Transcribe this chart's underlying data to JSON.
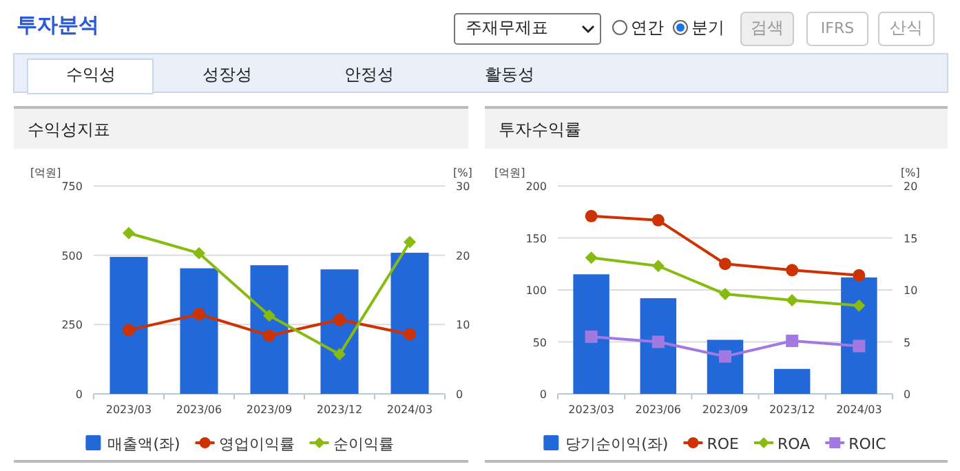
{
  "chart_data": [
    {
      "type": "bar",
      "title": "수익성지표",
      "ylabel": "[억원]",
      "y2label": "[%]",
      "categories": [
        "2023/03",
        "2023/06",
        "2023/09",
        "2023/12",
        "2024/03"
      ],
      "annotations": [
        "투자분석",
        "주재무제표",
        "연간",
        "분기",
        "검색",
        "IFRS",
        "산식",
        "수익성",
        "성장성",
        "안정성",
        "활동성"
      ],
      "series": [
        {
          "name": "매출액(좌)",
          "color": "#2268d8",
          "values": [
            494,
            453,
            464,
            449,
            509
          ]
        },
        {
          "name": "영업이익률",
          "type": "line",
          "axis": "y2",
          "marker": "circle",
          "color": "#cc3300",
          "values": [
            9.2,
            11.5,
            8.4,
            10.7,
            8.6
          ]
        },
        {
          "name": "순이익률",
          "type": "line",
          "axis": "y2",
          "marker": "diamond",
          "color": "#88bb11",
          "values": [
            23.2,
            20.3,
            11.3,
            5.7,
            21.9
          ]
        }
      ],
      "ylim": [
        0,
        750
      ],
      "yticks": [
        0,
        250,
        500,
        750
      ],
      "y2lim": [
        0,
        30
      ],
      "y2ticks": [
        0,
        10,
        20,
        30
      ],
      "grid": "y",
      "legend": "bottom"
    },
    {
      "type": "bar",
      "title": "투자수익률",
      "ylabel": "[억원]",
      "y2label": "[%]",
      "categories": [
        "2023/03",
        "2023/06",
        "2023/09",
        "2023/12",
        "2024/03"
      ],
      "series": [
        {
          "name": "당기순이익(좌)",
          "color": "#2268d8",
          "values": [
            115,
            92,
            52,
            24,
            112
          ]
        },
        {
          "name": "ROE",
          "type": "line",
          "axis": "y2",
          "marker": "circle",
          "color": "#cc3300",
          "values": [
            17.1,
            16.7,
            12.5,
            11.9,
            11.4
          ]
        },
        {
          "name": "ROA",
          "type": "line",
          "axis": "y2",
          "marker": "diamond",
          "color": "#88bb11",
          "values": [
            13.1,
            12.3,
            9.6,
            9.0,
            8.5
          ]
        },
        {
          "name": "ROIC",
          "type": "line",
          "axis": "y2",
          "marker": "square",
          "color": "#a07ae0",
          "values": [
            5.5,
            5.0,
            3.6,
            5.1,
            4.6
          ]
        }
      ],
      "ylim": [
        0,
        200
      ],
      "yticks": [
        0,
        50,
        100,
        150,
        200
      ],
      "y2lim": [
        0,
        20
      ],
      "y2ticks": [
        0,
        5,
        10,
        15,
        20
      ],
      "grid": "y",
      "legend": "bottom"
    }
  ]
}
